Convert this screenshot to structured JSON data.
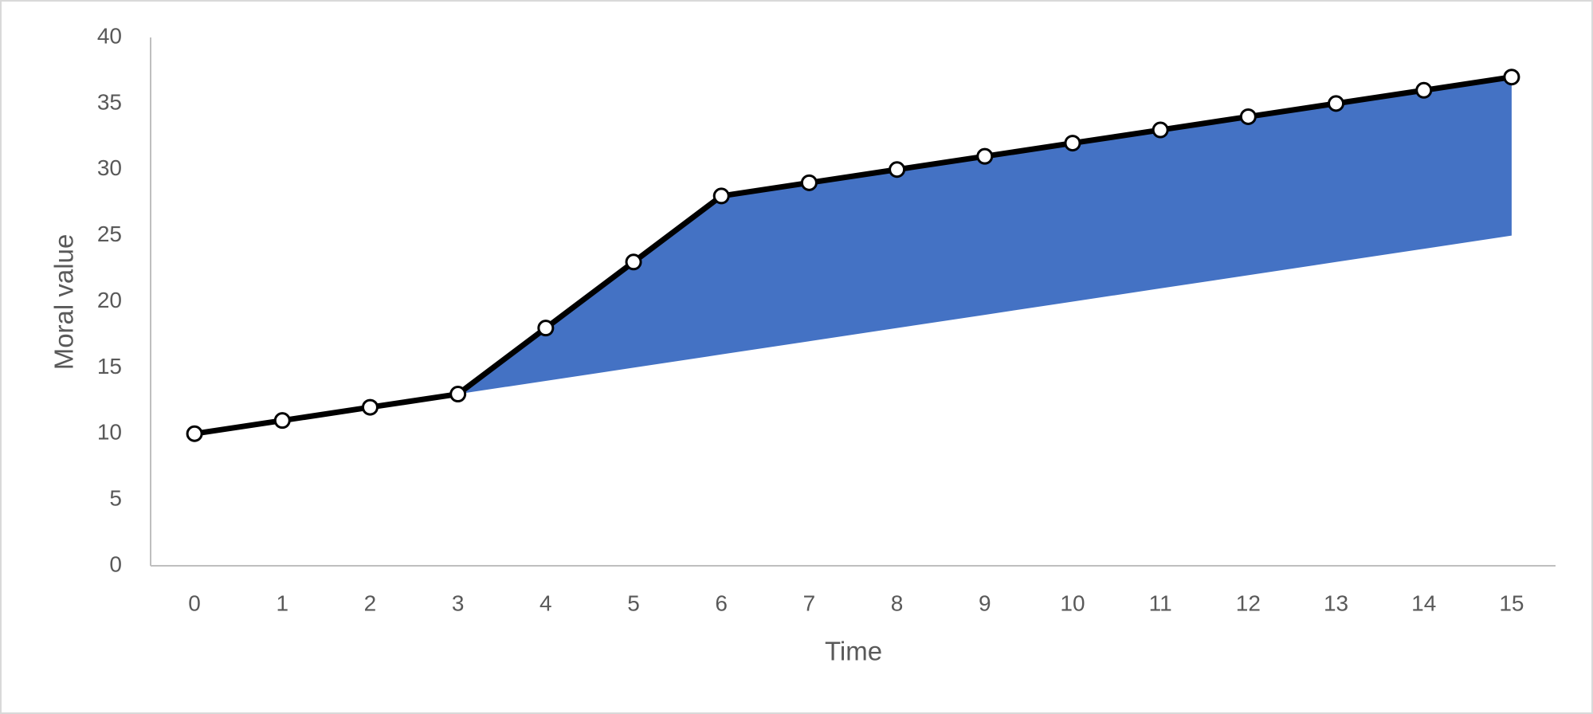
{
  "chart_data": {
    "type": "line",
    "x_label": "Time",
    "y_label": "Moral value",
    "categories": [
      0,
      1,
      2,
      3,
      4,
      5,
      6,
      7,
      8,
      9,
      10,
      11,
      12,
      13,
      14,
      15
    ],
    "series": [
      {
        "color": "#000000",
        "values": [
          10,
          11,
          12,
          13,
          18,
          23,
          28,
          29,
          30,
          31,
          32,
          33,
          34,
          35,
          36,
          37
        ]
      }
    ],
    "band": {
      "color": "#4472c4",
      "lower": [
        null,
        null,
        null,
        13,
        14,
        15,
        16,
        17,
        18,
        19,
        20,
        21,
        22,
        23,
        24,
        25
      ]
    },
    "ylim": [
      0,
      40
    ],
    "yticks": [
      0,
      5,
      10,
      15,
      20,
      25,
      30,
      35,
      40
    ],
    "grid": false
  }
}
